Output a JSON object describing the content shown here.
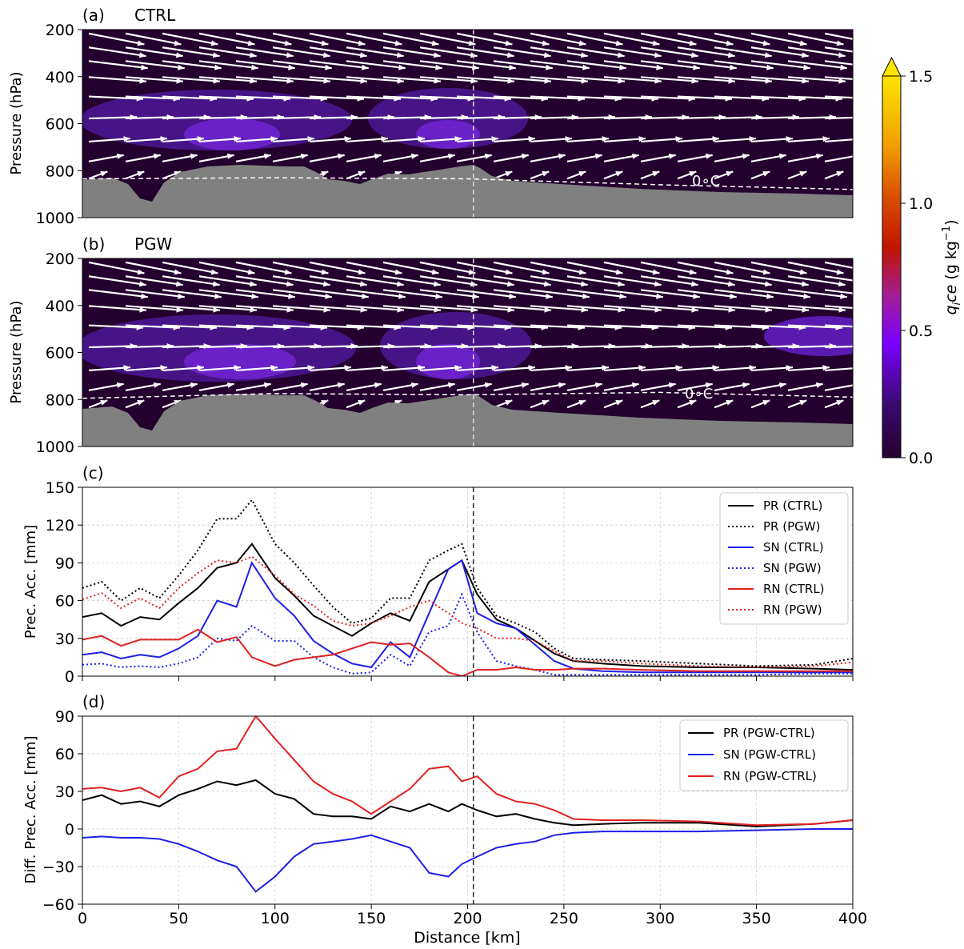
{
  "colors": {
    "ctrl": "#000000",
    "snow": "#1f1fe6",
    "rain": "#e02020",
    "terrain": "#808080",
    "background": "#24002e",
    "wind": "#ffffff",
    "grid": "#cccccc"
  },
  "chart_data": [
    {
      "type": "heatmap",
      "panel": "(a)",
      "title": "CTRL",
      "ylabel": "Pressure (hPa)",
      "yticks": [
        "200",
        "400",
        "600",
        "800",
        "1000"
      ],
      "ylim": [
        1000,
        200
      ],
      "xlim": [
        0,
        400
      ],
      "freezing_label": "0∘C",
      "freezing_level_hPa": [
        [
          0,
          835
        ],
        [
          100,
          830
        ],
        [
          200,
          835
        ],
        [
          300,
          860
        ],
        [
          400,
          880
        ]
      ],
      "cross_section_km": 203
    },
    {
      "type": "heatmap",
      "panel": "(b)",
      "title": "PGW",
      "ylabel": "Pressure (hPa)",
      "yticks": [
        "200",
        "400",
        "600",
        "800",
        "1000"
      ],
      "ylim": [
        1000,
        200
      ],
      "xlim": [
        0,
        400
      ],
      "freezing_label": "0∘C",
      "freezing_level_hPa": [
        [
          0,
          795
        ],
        [
          100,
          775
        ],
        [
          200,
          780
        ],
        [
          300,
          770
        ],
        [
          400,
          790
        ]
      ],
      "cross_section_km": 203
    },
    {
      "type": "colorbar",
      "label": "q_ice (g kg⁻¹)",
      "ticks": [
        "0.0",
        "0.5",
        "1.0",
        "1.5"
      ],
      "range": [
        0,
        1.5
      ],
      "extend": "max"
    },
    {
      "type": "line",
      "panel": "(c)",
      "ylabel": "Prec. Acc. [mm]",
      "yticks": [
        "0",
        "30",
        "60",
        "90",
        "120",
        "150"
      ],
      "ylim": [
        0,
        150
      ],
      "xlim": [
        0,
        400
      ],
      "legend_position": "upper right",
      "x": [
        0,
        10,
        20,
        30,
        40,
        50,
        60,
        70,
        80,
        88,
        100,
        110,
        120,
        130,
        140,
        150,
        160,
        170,
        180,
        190,
        197,
        205,
        215,
        225,
        235,
        245,
        255,
        270,
        290,
        320,
        350,
        380,
        400
      ],
      "series": [
        {
          "name": "PR (CTRL)",
          "color": "#000000",
          "style": "solid",
          "values": [
            47,
            50,
            40,
            47,
            45,
            58,
            70,
            86,
            90,
            105,
            78,
            64,
            48,
            40,
            32,
            42,
            50,
            44,
            75,
            85,
            92,
            65,
            45,
            38,
            28,
            18,
            12,
            10,
            8,
            7,
            7,
            6,
            5
          ]
        },
        {
          "name": "PR (PGW)",
          "color": "#000000",
          "style": "dotted",
          "values": [
            70,
            75,
            60,
            70,
            62,
            80,
            100,
            125,
            125,
            140,
            105,
            90,
            72,
            55,
            42,
            46,
            62,
            62,
            92,
            100,
            105,
            70,
            48,
            42,
            35,
            22,
            14,
            13,
            12,
            10,
            8,
            9,
            14
          ]
        },
        {
          "name": "SN (CTRL)",
          "color": "#1f1fe6",
          "style": "solid",
          "values": [
            17,
            19,
            14,
            17,
            15,
            22,
            32,
            60,
            55,
            90,
            62,
            48,
            28,
            18,
            10,
            7,
            27,
            15,
            50,
            85,
            92,
            50,
            42,
            38,
            25,
            12,
            6,
            4,
            3,
            3,
            3,
            3,
            3
          ]
        },
        {
          "name": "SN (PGW)",
          "color": "#1f1fe6",
          "style": "dotted",
          "values": [
            9,
            10,
            7,
            8,
            7,
            10,
            15,
            30,
            28,
            40,
            28,
            28,
            15,
            7,
            2,
            3,
            17,
            8,
            35,
            40,
            65,
            35,
            12,
            8,
            5,
            1,
            1,
            1,
            1,
            1,
            1,
            2,
            2
          ]
        },
        {
          "name": "RN (CTRL)",
          "color": "#e02020",
          "style": "solid",
          "values": [
            29,
            32,
            24,
            29,
            29,
            29,
            37,
            27,
            31,
            15,
            8,
            13,
            15,
            17,
            22,
            27,
            25,
            26,
            15,
            3,
            0,
            5,
            5,
            7,
            5,
            5,
            6,
            6,
            5,
            4,
            4,
            4,
            4
          ]
        },
        {
          "name": "RN (PGW)",
          "color": "#e02020",
          "style": "dotted",
          "values": [
            61,
            66,
            54,
            62,
            54,
            70,
            82,
            92,
            90,
            95,
            80,
            65,
            56,
            44,
            40,
            42,
            48,
            55,
            60,
            50,
            42,
            38,
            30,
            30,
            28,
            20,
            12,
            12,
            10,
            8,
            7,
            8,
            11
          ]
        }
      ]
    },
    {
      "type": "line",
      "panel": "(d)",
      "ylabel": "Diff. Prec. Acc. [mm]",
      "xlabel": "Distance [km]",
      "yticks": [
        "−60",
        "−30",
        "0",
        "30",
        "60",
        "90"
      ],
      "xticks": [
        "0",
        "50",
        "100",
        "150",
        "200",
        "250",
        "300",
        "350",
        "400"
      ],
      "ylim": [
        -60,
        90
      ],
      "xlim": [
        0,
        400
      ],
      "legend_position": "upper right",
      "x": [
        0,
        10,
        20,
        30,
        40,
        50,
        60,
        70,
        80,
        90,
        100,
        110,
        120,
        130,
        140,
        150,
        160,
        170,
        180,
        190,
        197,
        205,
        215,
        225,
        235,
        245,
        255,
        270,
        290,
        320,
        350,
        380,
        400
      ],
      "series": [
        {
          "name": "PR (PGW-CTRL)",
          "color": "#000000",
          "style": "solid",
          "values": [
            23,
            27,
            20,
            22,
            18,
            27,
            32,
            38,
            35,
            39,
            28,
            24,
            12,
            10,
            10,
            8,
            18,
            14,
            20,
            14,
            20,
            15,
            10,
            12,
            8,
            5,
            3,
            4,
            5,
            5,
            2,
            4,
            7
          ]
        },
        {
          "name": "SN (PGW-CTRL)",
          "color": "#1f1fe6",
          "style": "solid",
          "values": [
            -7,
            -6,
            -7,
            -7,
            -8,
            -12,
            -18,
            -25,
            -30,
            -50,
            -38,
            -22,
            -12,
            -10,
            -8,
            -5,
            -10,
            -15,
            -35,
            -38,
            -28,
            -22,
            -15,
            -12,
            -10,
            -5,
            -3,
            -2,
            -2,
            -2,
            -1,
            0,
            0
          ]
        },
        {
          "name": "RN (PGW-CTRL)",
          "color": "#e02020",
          "style": "solid",
          "values": [
            32,
            33,
            30,
            33,
            25,
            42,
            48,
            62,
            64,
            90,
            72,
            55,
            38,
            28,
            22,
            12,
            22,
            32,
            48,
            50,
            38,
            42,
            28,
            22,
            20,
            15,
            8,
            7,
            7,
            6,
            3,
            4,
            7
          ]
        }
      ]
    }
  ]
}
